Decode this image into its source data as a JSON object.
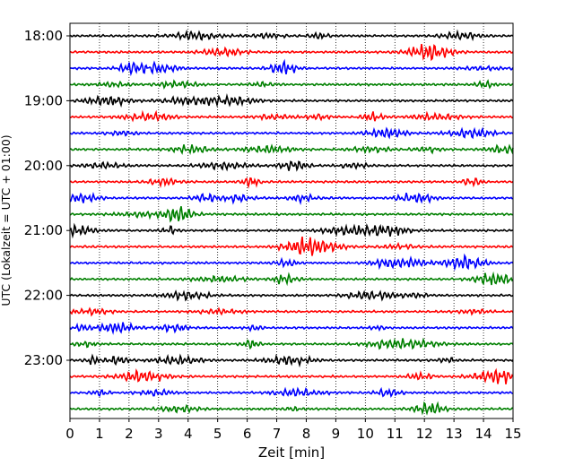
{
  "chart_data": {
    "type": "line",
    "title": "",
    "xlabel": "Zeit  [min]",
    "ylabel": "UTC (Lokalzeit = UTC + 01:00)",
    "xlim": [
      0,
      15
    ],
    "x_ticks": [
      "0",
      "1",
      "2",
      "3",
      "4",
      "5",
      "6",
      "7",
      "8",
      "9",
      "10",
      "11",
      "12",
      "13",
      "14",
      "15"
    ],
    "y_tick_labels": [
      "18:00",
      "19:00",
      "20:00",
      "21:00",
      "22:00",
      "23:00"
    ],
    "trace_interval_min": 15,
    "trace_count": 24,
    "trace_colors": [
      "#000000",
      "#ff0000",
      "#0000ff",
      "#008000"
    ],
    "grid": "vertical dotted",
    "legend": "none"
  }
}
